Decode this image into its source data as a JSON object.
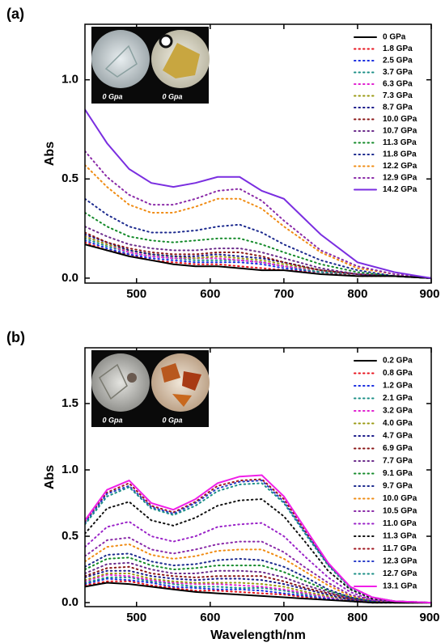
{
  "chart_data": [
    {
      "type": "line",
      "panel_label": "(a)",
      "y_label": "Abs",
      "xlim": [
        430,
        900
      ],
      "ylim": [
        -0.025,
        1.28
      ],
      "xticks": [
        500,
        600,
        700,
        800,
        900
      ],
      "yticks": [
        {
          "value": 0,
          "label": "0.0"
        },
        0.5,
        {
          "value": 1,
          "label": "1.0"
        }
      ],
      "legend": "upper right",
      "annotations": [
        "0 Gpa",
        "0 Gpa"
      ],
      "x": [
        430,
        460,
        490,
        520,
        550,
        580,
        610,
        640,
        670,
        700,
        750,
        800,
        850,
        900
      ],
      "series": [
        {
          "name": "0 GPa",
          "color": "#000000",
          "style": "solid",
          "values": [
            0.17,
            0.14,
            0.11,
            0.09,
            0.07,
            0.06,
            0.06,
            0.05,
            0.04,
            0.04,
            0.02,
            0.01,
            0.01,
            0.0
          ]
        },
        {
          "name": "1.8 GPa",
          "color": "#e8141e",
          "style": "dotted",
          "values": [
            0.18,
            0.14,
            0.12,
            0.09,
            0.08,
            0.07,
            0.07,
            0.06,
            0.05,
            0.04,
            0.03,
            0.01,
            0.01,
            0.0
          ]
        },
        {
          "name": "2.5 GPa",
          "color": "#1a2ee0",
          "style": "dotted",
          "values": [
            0.19,
            0.15,
            0.12,
            0.1,
            0.09,
            0.08,
            0.08,
            0.08,
            0.07,
            0.05,
            0.03,
            0.02,
            0.01,
            0.0
          ]
        },
        {
          "name": "3.7 GPa",
          "color": "#1b8f86",
          "style": "dotted",
          "values": [
            0.2,
            0.16,
            0.13,
            0.11,
            0.1,
            0.09,
            0.09,
            0.09,
            0.08,
            0.06,
            0.03,
            0.02,
            0.01,
            0.0
          ]
        },
        {
          "name": "6.3 GPa",
          "color": "#e020d0",
          "style": "dotted",
          "values": [
            0.21,
            0.17,
            0.13,
            0.11,
            0.1,
            0.1,
            0.1,
            0.09,
            0.08,
            0.06,
            0.04,
            0.02,
            0.01,
            0.0
          ]
        },
        {
          "name": "7.3 GPa",
          "color": "#9a9a12",
          "style": "dotted",
          "values": [
            0.21,
            0.17,
            0.14,
            0.12,
            0.11,
            0.1,
            0.11,
            0.1,
            0.09,
            0.07,
            0.04,
            0.02,
            0.01,
            0.0
          ]
        },
        {
          "name": "8.7 GPa",
          "color": "#1a1a8a",
          "style": "dotted",
          "values": [
            0.22,
            0.18,
            0.14,
            0.12,
            0.11,
            0.11,
            0.12,
            0.11,
            0.1,
            0.08,
            0.04,
            0.02,
            0.01,
            0.0
          ]
        },
        {
          "name": "10.0 GPa",
          "color": "#8a1414",
          "style": "dotted",
          "values": [
            0.23,
            0.18,
            0.15,
            0.13,
            0.12,
            0.12,
            0.13,
            0.13,
            0.11,
            0.08,
            0.04,
            0.02,
            0.01,
            0.0
          ]
        },
        {
          "name": "10.7 GPa",
          "color": "#6a2a8a",
          "style": "dotted",
          "values": [
            0.26,
            0.21,
            0.17,
            0.15,
            0.14,
            0.14,
            0.15,
            0.15,
            0.13,
            0.1,
            0.05,
            0.02,
            0.01,
            0.0
          ]
        },
        {
          "name": "11.3 GPa",
          "color": "#148a2a",
          "style": "dotted",
          "values": [
            0.33,
            0.26,
            0.21,
            0.19,
            0.18,
            0.19,
            0.2,
            0.2,
            0.17,
            0.13,
            0.07,
            0.03,
            0.01,
            0.0
          ]
        },
        {
          "name": "11.8 GPa",
          "color": "#1c2a8e",
          "style": "dotted",
          "values": [
            0.4,
            0.32,
            0.26,
            0.23,
            0.23,
            0.24,
            0.26,
            0.27,
            0.23,
            0.17,
            0.09,
            0.04,
            0.01,
            0.0
          ]
        },
        {
          "name": "12.2 GPa",
          "color": "#f08c14",
          "style": "dotted",
          "values": [
            0.57,
            0.46,
            0.37,
            0.33,
            0.33,
            0.36,
            0.4,
            0.4,
            0.35,
            0.26,
            0.13,
            0.05,
            0.02,
            0.0
          ]
        },
        {
          "name": "12.9 GPa",
          "color": "#8a2aa8",
          "style": "dotted",
          "values": [
            0.64,
            0.51,
            0.42,
            0.37,
            0.37,
            0.4,
            0.44,
            0.45,
            0.39,
            0.29,
            0.14,
            0.06,
            0.02,
            0.0
          ]
        },
        {
          "name": "14.2 GPa",
          "color": "#7a2ee0",
          "style": "solid",
          "values": [
            0.85,
            0.68,
            0.55,
            0.48,
            0.46,
            0.48,
            0.51,
            0.51,
            0.44,
            0.4,
            0.22,
            0.08,
            0.03,
            0.0
          ]
        }
      ]
    },
    {
      "type": "line",
      "panel_label": "(b)",
      "x_label": "Wavelength/nm",
      "y_label": "Abs",
      "xlim": [
        430,
        900
      ],
      "ylim": [
        -0.03,
        1.92
      ],
      "xticks": [
        500,
        600,
        700,
        800,
        900
      ],
      "yticks": [
        {
          "value": 0,
          "label": "0.0"
        },
        0.5,
        {
          "value": 1,
          "label": "1.0"
        },
        1.5
      ],
      "legend": "upper right",
      "annotations": [
        "0 Gpa",
        "0 Gpa"
      ],
      "x": [
        430,
        460,
        490,
        520,
        550,
        580,
        610,
        640,
        670,
        700,
        730,
        760,
        790,
        820,
        850,
        900
      ],
      "series": [
        {
          "name": "0.2 GPa",
          "color": "#000000",
          "style": "solid",
          "values": [
            0.12,
            0.15,
            0.14,
            0.12,
            0.1,
            0.08,
            0.07,
            0.06,
            0.05,
            0.04,
            0.03,
            0.02,
            0.01,
            0.0,
            0.0,
            0.0
          ]
        },
        {
          "name": "0.8 GPa",
          "color": "#e8141e",
          "style": "dotted",
          "values": [
            0.13,
            0.16,
            0.16,
            0.13,
            0.11,
            0.09,
            0.09,
            0.08,
            0.07,
            0.06,
            0.04,
            0.03,
            0.01,
            0.0,
            0.0,
            0.0
          ]
        },
        {
          "name": "1.2 GPa",
          "color": "#1a2ee0",
          "style": "dotted",
          "values": [
            0.14,
            0.18,
            0.17,
            0.15,
            0.12,
            0.11,
            0.1,
            0.1,
            0.09,
            0.07,
            0.05,
            0.03,
            0.01,
            0.0,
            0.0,
            0.0
          ]
        },
        {
          "name": "2.1 GPa",
          "color": "#1b8f86",
          "style": "dotted",
          "values": [
            0.15,
            0.19,
            0.19,
            0.16,
            0.14,
            0.12,
            0.12,
            0.11,
            0.11,
            0.09,
            0.06,
            0.04,
            0.02,
            0.0,
            0.0,
            0.0
          ]
        },
        {
          "name": "3.2 GPa",
          "color": "#e020d0",
          "style": "dotted",
          "values": [
            0.16,
            0.21,
            0.2,
            0.17,
            0.15,
            0.14,
            0.14,
            0.13,
            0.12,
            0.1,
            0.07,
            0.04,
            0.02,
            0.0,
            0.0,
            0.0
          ]
        },
        {
          "name": "4.0 GPa",
          "color": "#9a9a12",
          "style": "dotted",
          "values": [
            0.17,
            0.22,
            0.22,
            0.18,
            0.16,
            0.15,
            0.15,
            0.15,
            0.14,
            0.12,
            0.08,
            0.05,
            0.02,
            0.0,
            0.0,
            0.0
          ]
        },
        {
          "name": "4.7 GPa",
          "color": "#1a1a8a",
          "style": "dotted",
          "values": [
            0.19,
            0.24,
            0.24,
            0.2,
            0.18,
            0.17,
            0.18,
            0.18,
            0.17,
            0.14,
            0.1,
            0.06,
            0.02,
            0.01,
            0.0,
            0.0
          ]
        },
        {
          "name": "6.9 GPa",
          "color": "#8a1414",
          "style": "dotted",
          "values": [
            0.2,
            0.26,
            0.27,
            0.22,
            0.2,
            0.19,
            0.2,
            0.2,
            0.2,
            0.16,
            0.11,
            0.07,
            0.03,
            0.01,
            0.0,
            0.0
          ]
        },
        {
          "name": "7.7 GPa",
          "color": "#6a2a8a",
          "style": "dotted",
          "values": [
            0.22,
            0.29,
            0.3,
            0.25,
            0.22,
            0.22,
            0.24,
            0.24,
            0.23,
            0.19,
            0.13,
            0.08,
            0.03,
            0.01,
            0.0,
            0.0
          ]
        },
        {
          "name": "9.1 GPa",
          "color": "#148a2a",
          "style": "dotted",
          "values": [
            0.25,
            0.33,
            0.34,
            0.28,
            0.25,
            0.26,
            0.28,
            0.28,
            0.28,
            0.23,
            0.16,
            0.09,
            0.04,
            0.01,
            0.0,
            0.0
          ]
        },
        {
          "name": "9.7 GPa",
          "color": "#1c2a8e",
          "style": "dotted",
          "values": [
            0.27,
            0.36,
            0.37,
            0.31,
            0.28,
            0.29,
            0.32,
            0.33,
            0.32,
            0.27,
            0.19,
            0.1,
            0.04,
            0.01,
            0.0,
            0.0
          ]
        },
        {
          "name": "10.0 GPa",
          "color": "#f08c14",
          "style": "dotted",
          "values": [
            0.31,
            0.42,
            0.44,
            0.36,
            0.33,
            0.35,
            0.39,
            0.4,
            0.4,
            0.33,
            0.23,
            0.13,
            0.05,
            0.02,
            0.0,
            0.0
          ]
        },
        {
          "name": "10.5 GPa",
          "color": "#8a2aa8",
          "style": "dotted",
          "values": [
            0.35,
            0.47,
            0.49,
            0.4,
            0.37,
            0.4,
            0.44,
            0.46,
            0.46,
            0.38,
            0.26,
            0.15,
            0.06,
            0.02,
            0.01,
            0.0
          ]
        },
        {
          "name": "11.0 GPa",
          "color": "#9a22c8",
          "style": "dotted",
          "values": [
            0.42,
            0.57,
            0.61,
            0.5,
            0.46,
            0.5,
            0.57,
            0.59,
            0.6,
            0.5,
            0.34,
            0.19,
            0.08,
            0.02,
            0.01,
            0.0
          ]
        },
        {
          "name": "11.3 GPa",
          "color": "#111111",
          "style": "dotted",
          "values": [
            0.52,
            0.71,
            0.76,
            0.62,
            0.58,
            0.64,
            0.73,
            0.77,
            0.78,
            0.65,
            0.45,
            0.24,
            0.1,
            0.03,
            0.01,
            0.0
          ]
        },
        {
          "name": "11.7 GPa",
          "color": "#a0141e",
          "style": "dotted",
          "values": [
            0.61,
            0.83,
            0.9,
            0.73,
            0.68,
            0.76,
            0.88,
            0.92,
            0.93,
            0.78,
            0.53,
            0.29,
            0.12,
            0.04,
            0.01,
            0.0
          ]
        },
        {
          "name": "12.3 GPa",
          "color": "#2a3ec8",
          "style": "dotted",
          "values": [
            0.6,
            0.82,
            0.88,
            0.72,
            0.67,
            0.75,
            0.86,
            0.91,
            0.92,
            0.76,
            0.52,
            0.29,
            0.12,
            0.04,
            0.01,
            0.0
          ]
        },
        {
          "name": "12.7 GPa",
          "color": "#1b8f86",
          "style": "dotted",
          "values": [
            0.59,
            0.8,
            0.87,
            0.71,
            0.66,
            0.73,
            0.84,
            0.89,
            0.9,
            0.75,
            0.51,
            0.28,
            0.11,
            0.04,
            0.01,
            0.0
          ]
        },
        {
          "name": "13.1 GPa",
          "color": "#f01ee8",
          "style": "solid",
          "values": [
            0.62,
            0.85,
            0.92,
            0.75,
            0.7,
            0.78,
            0.9,
            0.95,
            0.96,
            0.8,
            0.55,
            0.3,
            0.12,
            0.04,
            0.01,
            0.0
          ]
        }
      ]
    }
  ]
}
